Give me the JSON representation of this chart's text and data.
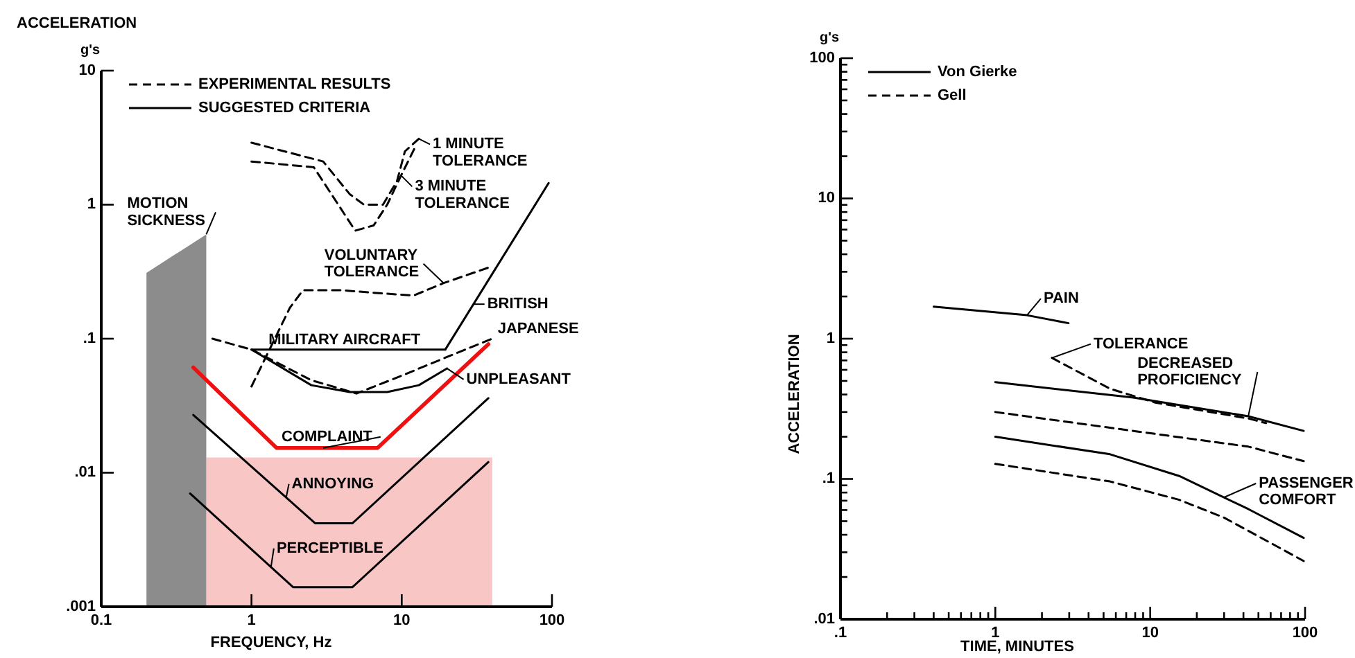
{
  "chart_data": [
    {
      "type": "line",
      "log": "xy",
      "xlabel": "FREQUENCY, Hz",
      "ylabel": "ACCELERATION",
      "legend": "top left",
      "xlim": [
        0.1,
        100
      ],
      "ylim": [
        0.001,
        10
      ],
      "xticks": [
        0.1,
        1,
        10,
        100
      ],
      "yticks": [
        {
          "value": 0.001,
          "label": ".001"
        },
        {
          "value": 0.01,
          "label": ".01"
        },
        {
          "value": 0.1,
          "label": ".1"
        },
        1,
        10
      ],
      "series": [
        {
          "type": "area",
          "color": "#f9c6c6",
          "x": [
            0.5,
            40
          ],
          "values": [
            0.013,
            0.013
          ]
        },
        {
          "type": "area",
          "color": "#8c8c8c",
          "x": [
            0.2,
            0.5
          ],
          "values": [
            0.31,
            0.6
          ]
        },
        {
          "name": "EXPERIMENTAL RESULTS",
          "color": "#000000",
          "line_style": "dashed",
          "x": [
            1,
            3,
            4.5,
            5.6,
            7.5,
            9.3,
            10.5,
            13
          ],
          "values": [
            2.9,
            2.1,
            1.2,
            1.0,
            1.0,
            1.5,
            2.5,
            3.1
          ]
        },
        {
          "color": "#000000",
          "line_style": "dashed",
          "x": [
            1,
            2.6,
            3.4,
            4.9,
            6.5,
            8,
            9.9,
            12.2
          ],
          "values": [
            2.1,
            1.9,
            1.2,
            0.64,
            0.7,
            1.0,
            1.65,
            2.65
          ]
        },
        {
          "color": "#000000",
          "line_style": "dashed",
          "x": [
            1,
            1.8,
            2.2,
            4,
            6.5,
            12,
            19,
            38
          ],
          "values": [
            0.044,
            0.17,
            0.23,
            0.23,
            0.22,
            0.21,
            0.26,
            0.34
          ]
        },
        {
          "color": "#000000",
          "line_style": "dashed",
          "x": [
            0.55,
            1,
            2.5,
            5,
            10,
            20,
            40
          ],
          "values": [
            0.1,
            0.083,
            0.049,
            0.039,
            0.053,
            0.073,
            0.1
          ]
        },
        {
          "name": "SUGGESTED CRITERIA",
          "color": "#000000",
          "line_style": "solid",
          "x": [
            1,
            19.5
          ],
          "values": [
            0.083,
            0.083
          ]
        },
        {
          "color": "#000000",
          "line_style": "solid",
          "x": [
            19.5,
            95
          ],
          "values": [
            0.083,
            1.45
          ]
        },
        {
          "color": "#000000",
          "line_style": "solid",
          "x": [
            1,
            2.5,
            4.5,
            8,
            13,
            20
          ],
          "values": [
            0.083,
            0.045,
            0.04,
            0.04,
            0.045,
            0.06
          ]
        },
        {
          "color": "#ee1111",
          "line_style": "solid",
          "x": [
            0.41,
            1.47,
            6.9,
            37.7
          ],
          "values": [
            0.061,
            0.0153,
            0.0153,
            0.091
          ]
        },
        {
          "color": "#000000",
          "line_style": "solid",
          "x": [
            0.41,
            2.65,
            4.7,
            37.7
          ],
          "values": [
            0.027,
            0.0042,
            0.0042,
            0.036
          ]
        },
        {
          "color": "#000000",
          "line_style": "solid",
          "x": [
            0.39,
            1.89,
            4.7,
            37.7
          ],
          "values": [
            0.007,
            0.0014,
            0.0014,
            0.012
          ]
        }
      ],
      "annotations": [
        "g's",
        {
          "text": "1 MINUTE\nTOLERANCE",
          "x": 13,
          "y": 3.1
        },
        {
          "text": "3 MINUTE\nTOLERANCE",
          "x": 9.9,
          "y": 1.65
        },
        {
          "text": "MOTION\nSICKNESS",
          "x": 0.5,
          "y": 0.6
        },
        {
          "text": "VOLUNTARY\nTOLERANCE",
          "x": 19,
          "y": 0.26
        },
        {
          "text": "BRITISH",
          "x": 30,
          "y": 0.181
        },
        {
          "text": "MILITARY AIRCRAFT",
          "x": 1.3,
          "y": 0.083
        },
        {
          "text": "JAPANESE",
          "x": 40,
          "y": 0.1
        },
        {
          "text": "UNPLEASANT",
          "x": 20,
          "y": 0.06
        },
        {
          "text": "COMPLAINT",
          "x": 3,
          "y": 0.0153
        },
        {
          "text": "ANNOYING",
          "x": 1.7,
          "y": 0.0065
        },
        {
          "text": "PERCEPTIBLE",
          "x": 1.35,
          "y": 0.002
        }
      ]
    },
    {
      "type": "line",
      "log": "xy",
      "xlabel": "TIME, MINUTES",
      "ylabel": "ACCELERATION",
      "legend": "top left",
      "xlim": [
        0.1,
        100
      ],
      "ylim": [
        0.01,
        100
      ],
      "xticks": [
        {
          "value": 0.1,
          "label": ".1"
        },
        {
          "value": 0.2,
          "label": null
        },
        {
          "value": 0.3,
          "label": null
        },
        {
          "value": 0.4,
          "label": null
        },
        {
          "value": 0.5,
          "label": null
        },
        {
          "value": 0.6,
          "label": null
        },
        {
          "value": 0.7,
          "label": null
        },
        {
          "value": 0.8,
          "label": null
        },
        {
          "value": 0.9,
          "label": null
        },
        1,
        {
          "value": 2,
          "label": null
        },
        {
          "value": 3,
          "label": null
        },
        {
          "value": 4,
          "label": null
        },
        {
          "value": 5,
          "label": null
        },
        {
          "value": 6,
          "label": null
        },
        {
          "value": 7,
          "label": null
        },
        {
          "value": 8,
          "label": null
        },
        {
          "value": 9,
          "label": null
        },
        10,
        {
          "value": 20,
          "label": null
        },
        {
          "value": 30,
          "label": null
        },
        {
          "value": 40,
          "label": null
        },
        {
          "value": 50,
          "label": null
        },
        {
          "value": 60,
          "label": null
        },
        {
          "value": 70,
          "label": null
        },
        {
          "value": 80,
          "label": null
        },
        {
          "value": 90,
          "label": null
        },
        100
      ],
      "yticks": [
        {
          "value": 0.01,
          "label": ".01"
        },
        {
          "value": 0.02,
          "label": null
        },
        {
          "value": 0.03,
          "label": null
        },
        {
          "value": 0.04,
          "label": null
        },
        {
          "value": 0.05,
          "label": null
        },
        {
          "value": 0.06,
          "label": null
        },
        {
          "value": 0.07,
          "label": null
        },
        {
          "value": 0.08,
          "label": null
        },
        {
          "value": 0.09,
          "label": null
        },
        {
          "value": 0.1,
          "label": ".1"
        },
        {
          "value": 0.2,
          "label": null
        },
        {
          "value": 0.3,
          "label": null
        },
        {
          "value": 0.4,
          "label": null
        },
        {
          "value": 0.5,
          "label": null
        },
        {
          "value": 0.6,
          "label": null
        },
        {
          "value": 0.7,
          "label": null
        },
        {
          "value": 0.8,
          "label": null
        },
        {
          "value": 0.9,
          "label": null
        },
        1,
        {
          "value": 2,
          "label": null
        },
        {
          "value": 3,
          "label": null
        },
        {
          "value": 4,
          "label": null
        },
        {
          "value": 5,
          "label": null
        },
        {
          "value": 6,
          "label": null
        },
        {
          "value": 7,
          "label": null
        },
        {
          "value": 8,
          "label": null
        },
        {
          "value": 9,
          "label": null
        },
        10,
        {
          "value": 20,
          "label": null
        },
        {
          "value": 30,
          "label": null
        },
        {
          "value": 40,
          "label": null
        },
        {
          "value": 50,
          "label": null
        },
        {
          "value": 60,
          "label": null
        },
        {
          "value": 70,
          "label": null
        },
        {
          "value": 80,
          "label": null
        },
        {
          "value": 90,
          "label": null
        },
        100
      ],
      "series": [
        {
          "name": "Von Gierke",
          "color": "#000000",
          "line_style": "solid",
          "x": [
            0.4,
            1.6,
            2.97
          ],
          "values": [
            1.69,
            1.47,
            1.29
          ]
        },
        {
          "name": "Gell",
          "color": "#000000",
          "line_style": "dashed",
          "x": [
            2.32,
            5.5,
            10.8,
            43,
            56
          ],
          "values": [
            0.73,
            0.44,
            0.35,
            0.27,
            0.25
          ]
        },
        {
          "color": "#000000",
          "line_style": "solid",
          "x": [
            1,
            7.8,
            43,
            98
          ],
          "values": [
            0.49,
            0.38,
            0.28,
            0.22
          ]
        },
        {
          "color": "#000000",
          "line_style": "dashed",
          "x": [
            1,
            7.8,
            43,
            98
          ],
          "values": [
            0.3,
            0.22,
            0.17,
            0.134
          ]
        },
        {
          "color": "#000000",
          "line_style": "solid",
          "x": [
            1,
            5.5,
            15.4,
            43,
            98
          ],
          "values": [
            0.2,
            0.15,
            0.105,
            0.061,
            0.038
          ]
        },
        {
          "color": "#000000",
          "line_style": "dashed",
          "x": [
            1,
            5.5,
            15.4,
            30,
            98
          ],
          "values": [
            0.128,
            0.096,
            0.071,
            0.053,
            0.026
          ]
        }
      ],
      "annotations": [
        "g's",
        {
          "text": "PAIN",
          "x": 1.6,
          "y": 1.47
        },
        {
          "text": "TOLERANCE",
          "x": 2.32,
          "y": 0.73
        },
        {
          "text": "DECREASED\nPROFICIENCY",
          "x": 43,
          "y": 0.28
        },
        {
          "text": "PASSENGER\nCOMFORT",
          "x": 30,
          "y": 0.074
        }
      ]
    }
  ]
}
